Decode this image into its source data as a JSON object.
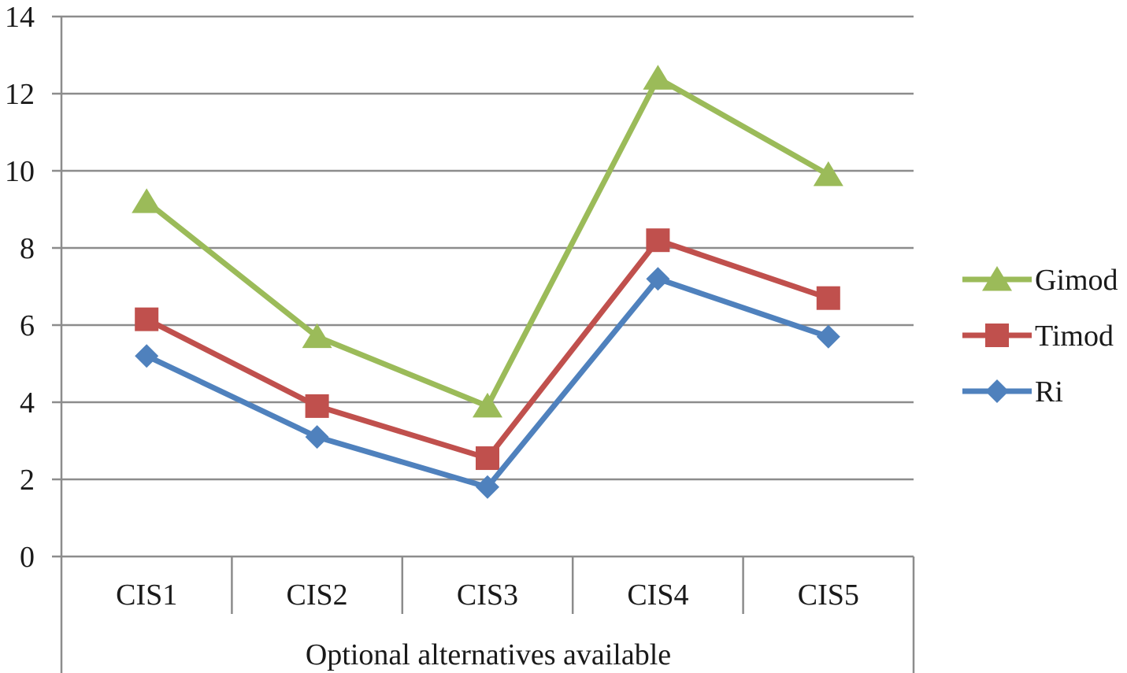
{
  "chart_data": {
    "type": "line",
    "title": "",
    "xlabel": "Optional alternatives available",
    "ylabel": "",
    "categories": [
      "CIS1",
      "CIS2",
      "CIS3",
      "CIS4",
      "CIS5"
    ],
    "ylim": [
      0,
      14
    ],
    "yticks": [
      0,
      2,
      4,
      6,
      8,
      10,
      12,
      14
    ],
    "grid": true,
    "legend_position": "right",
    "series": [
      {
        "name": "Gimod",
        "color": "#9bbb59",
        "marker": "triangle",
        "values": [
          9.2,
          5.7,
          3.9,
          12.4,
          9.9
        ]
      },
      {
        "name": "Timod",
        "color": "#c0504d",
        "marker": "square",
        "values": [
          6.15,
          3.9,
          2.55,
          8.2,
          6.7
        ]
      },
      {
        "name": "Ri",
        "color": "#4f81bd",
        "marker": "diamond",
        "values": [
          5.2,
          3.1,
          1.8,
          7.2,
          5.7
        ]
      }
    ]
  }
}
